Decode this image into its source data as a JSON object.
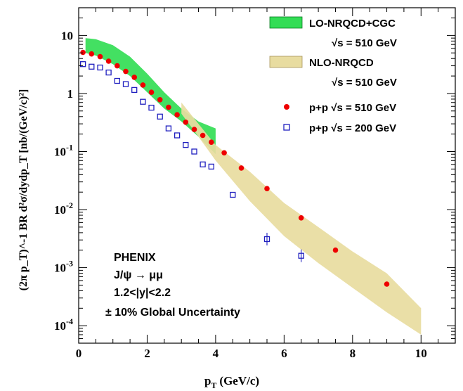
{
  "chart_data": {
    "type": "scatter",
    "xlabel": "p",
    "xlabel_sub": "T",
    "xlabel_units": "(GeV/c)",
    "ylabel": "(2π p_T)^-1 BR d²σ/dydp_T [nb/(GeV/c)²]",
    "xlim": [
      0,
      11
    ],
    "ylim": [
      5e-05,
      30
    ],
    "y_scale": "log",
    "x_ticks": [
      "0",
      "2",
      "4",
      "6",
      "8",
      "10"
    ],
    "y_ticks": [
      "10^-4",
      "10^-3",
      "10^-2",
      "10^-1",
      "1",
      "10"
    ],
    "bands": [
      {
        "name": "LO-NRQCD+CGC",
        "energy_label": "√s = 510 GeV",
        "color": "#33dd55",
        "x": [
          0.2,
          0.5,
          1.0,
          1.5,
          2.0,
          2.5,
          3.0,
          3.5,
          4.0
        ],
        "low": [
          5.0,
          4.5,
          3.2,
          2.0,
          1.05,
          0.55,
          0.33,
          0.18,
          0.09
        ],
        "high": [
          9.0,
          8.6,
          6.8,
          4.3,
          2.2,
          1.05,
          0.55,
          0.33,
          0.25
        ]
      },
      {
        "name": "NLO-NRQCD",
        "energy_label": "√s = 510 GeV",
        "color": "#e8dca0",
        "x": [
          3.0,
          3.5,
          4.0,
          5.0,
          6.0,
          7.0,
          8.0,
          9.0,
          10.0
        ],
        "low": [
          0.45,
          0.18,
          0.07,
          0.014,
          0.0035,
          0.0012,
          0.00045,
          0.00017,
          7e-05
        ],
        "high": [
          0.7,
          0.3,
          0.13,
          0.045,
          0.013,
          0.005,
          0.0019,
          0.0008,
          0.0002
        ]
      }
    ],
    "series": [
      {
        "name": "p+p √s = 510 GeV",
        "marker": "filled-circle",
        "color": "#ee0000",
        "x": [
          0.125,
          0.375,
          0.625,
          0.875,
          1.125,
          1.375,
          1.625,
          1.875,
          2.125,
          2.375,
          2.625,
          2.875,
          3.125,
          3.375,
          3.625,
          3.875,
          4.25,
          4.75,
          5.5,
          6.5,
          7.5,
          9.0
        ],
        "y": [
          5.1,
          4.8,
          4.3,
          3.6,
          3.0,
          2.4,
          1.9,
          1.4,
          1.05,
          0.78,
          0.58,
          0.43,
          0.32,
          0.24,
          0.19,
          0.145,
          0.095,
          0.052,
          0.023,
          0.0072,
          0.002,
          0.00052
        ]
      },
      {
        "name": "p+p √s = 200 GeV",
        "marker": "open-square",
        "color": "#1f1fbf",
        "x": [
          0.125,
          0.375,
          0.625,
          0.875,
          1.125,
          1.375,
          1.625,
          1.875,
          2.125,
          2.375,
          2.625,
          2.875,
          3.125,
          3.375,
          3.625,
          3.875,
          4.5,
          5.5,
          6.5
        ],
        "y": [
          3.2,
          2.9,
          2.8,
          2.3,
          1.65,
          1.45,
          1.15,
          0.72,
          0.57,
          0.4,
          0.25,
          0.19,
          0.13,
          0.1,
          0.06,
          0.055,
          0.018,
          0.0031,
          0.0016
        ]
      }
    ],
    "annotations": [
      "PHENIX",
      "J/ψ → μμ",
      "1.2<|y|<2.2",
      "± 10% Global Uncertainty"
    ],
    "grid": false,
    "legend_placement": "top-right"
  }
}
